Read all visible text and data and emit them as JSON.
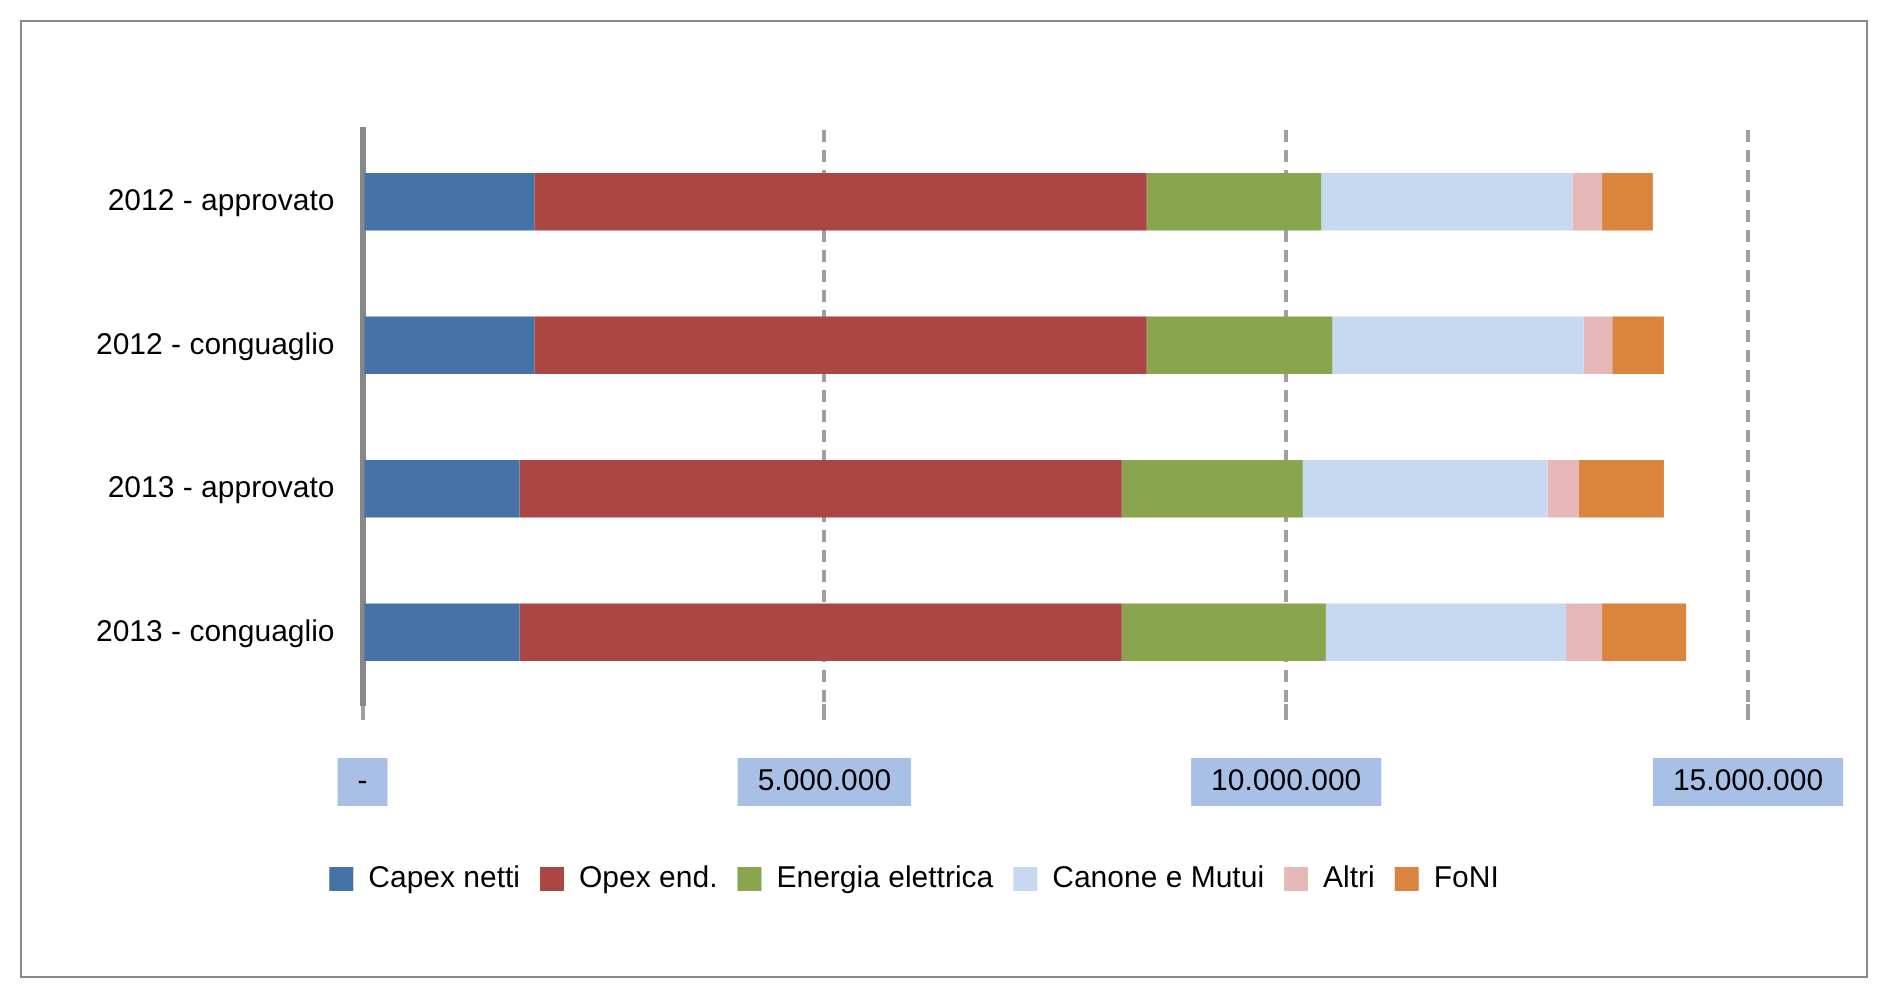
{
  "chart_data": {
    "type": "bar",
    "orientation": "horizontal",
    "stacked": true,
    "categories": [
      "2012 - approvato",
      "2012 - conguaglio",
      "2013 - approvato",
      "2013 - conguaglio"
    ],
    "series": [
      {
        "name": "Capex netti",
        "color": "#4572a7",
        "values": [
          1860000,
          1860000,
          1700000,
          1700000
        ]
      },
      {
        "name": "Opex end.",
        "color": "#aa4643",
        "values": [
          6630000,
          6630000,
          6520000,
          6520000
        ]
      },
      {
        "name": "Energia elettrica",
        "color": "#89a54e",
        "values": [
          1890000,
          2010000,
          1960000,
          2210000
        ]
      },
      {
        "name": "Canone e Mutui",
        "color": "#c6d9f1",
        "values": [
          2720000,
          2720000,
          2650000,
          2600000
        ]
      },
      {
        "name": "Altri",
        "color": "#e6b9b8",
        "values": [
          320000,
          310000,
          340000,
          390000
        ]
      },
      {
        "name": "FoNI",
        "color": "#db843d",
        "values": [
          550000,
          560000,
          920000,
          910000
        ]
      }
    ],
    "xlim": [
      0,
      15000000
    ],
    "xticks": [
      {
        "value": 0,
        "label": "-"
      },
      {
        "value": 5000000,
        "label": "5.000.000"
      },
      {
        "value": 10000000,
        "label": "10.000.000"
      },
      {
        "value": 15000000,
        "label": "15.000.000"
      }
    ],
    "grid": "x",
    "legend": "bottom"
  }
}
